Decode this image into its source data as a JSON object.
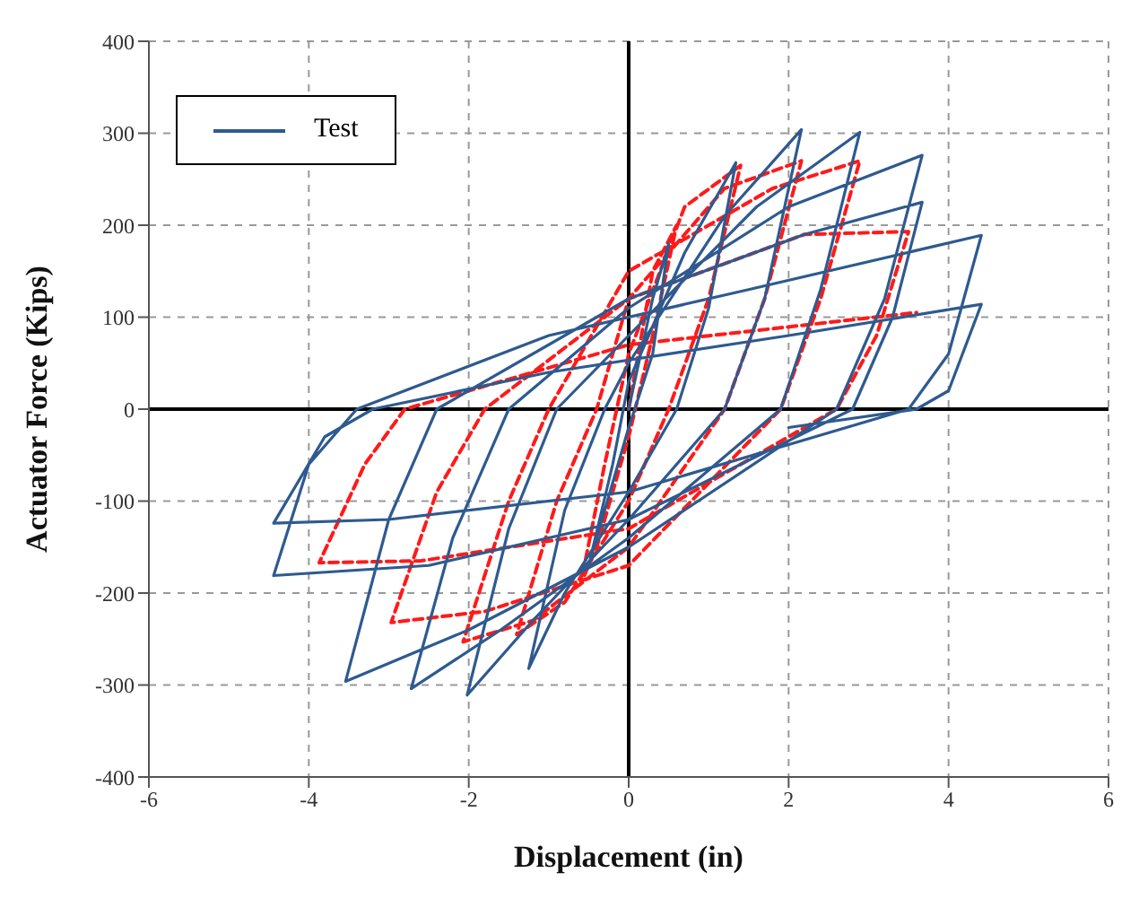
{
  "chart_data": {
    "type": "line",
    "xlabel": "Displacement (in)",
    "ylabel": "Actuator Force (Kips)",
    "xlim": [
      -6,
      6
    ],
    "xticks": [
      -6,
      -4,
      -2,
      0,
      2,
      4,
      6
    ],
    "ylim": [
      -400,
      400
    ],
    "yticks": [
      -400,
      -300,
      -200,
      -100,
      0,
      100,
      200,
      300,
      400
    ],
    "grid": true,
    "legend": "top left",
    "marker": "none",
    "series": [
      {
        "color": "#ff1a1a",
        "line_style": "dashed",
        "x": [
          0,
          0.3,
          0.6,
          0.3,
          0,
          -0.4,
          -0.6,
          -0.3,
          0,
          0.7,
          1.4,
          1.0,
          0.5,
          0,
          -0.8,
          -1.4,
          -0.9,
          -0.4,
          0,
          1.2,
          2.16,
          1.7,
          1.2,
          0,
          -1.2,
          -2.07,
          -1.5,
          -1.0,
          0,
          1.8,
          2.89,
          2.4,
          1.9,
          0,
          -1.8,
          -2.97,
          -2.4,
          -1.8,
          0,
          2.2,
          3.5,
          3.1,
          2.6,
          0,
          -2.6,
          -3.87,
          -3.3,
          -2.8,
          0,
          3.6
        ],
        "values": [
          0,
          150,
          200,
          80,
          -30,
          -150,
          -190,
          -60,
          60,
          220,
          265,
          120,
          0,
          -100,
          -210,
          -245,
          -100,
          0,
          120,
          240,
          270,
          120,
          0,
          -150,
          -230,
          -253,
          -100,
          0,
          150,
          240,
          270,
          120,
          0,
          -170,
          -220,
          -232,
          -90,
          0,
          120,
          190,
          193,
          80,
          0,
          -130,
          -165,
          -167,
          -60,
          0,
          70,
          105
        ]
      },
      {
        "name": "Test",
        "color": "#2e5a8f",
        "line_style": "solid",
        "x": [
          0,
          0.3,
          0.5,
          0.3,
          0,
          -0.3,
          -0.5,
          -0.2,
          0,
          0.7,
          1.34,
          1.0,
          0.6,
          0,
          -0.8,
          -1.25,
          -0.8,
          -0.3,
          0,
          1.2,
          2.16,
          1.7,
          1.2,
          0,
          -1.2,
          -2.02,
          -1.5,
          -0.9,
          0,
          1.6,
          2.89,
          2.4,
          1.9,
          0,
          -1.6,
          -2.72,
          -2.2,
          -1.5,
          0,
          2.0,
          3.67,
          3.2,
          2.6,
          0,
          -2.0,
          -3.54,
          -3.0,
          -2.4,
          0,
          2.2,
          3.67,
          3.3,
          2.8,
          0,
          -2.5,
          -4.44,
          -4.0,
          -3.4,
          -1,
          1.5,
          4.41,
          4.0,
          3.5,
          0,
          -3,
          -4.44,
          -3.8,
          -3.2,
          -1,
          2,
          4.41,
          4.0,
          3.6,
          2
        ],
        "values": [
          0,
          120,
          180,
          60,
          -20,
          -110,
          -170,
          -60,
          30,
          170,
          268,
          110,
          0,
          -90,
          -200,
          -282,
          -110,
          0,
          50,
          210,
          304,
          120,
          0,
          -120,
          -230,
          -311,
          -130,
          0,
          80,
          220,
          301,
          130,
          0,
          -140,
          -240,
          -304,
          -140,
          0,
          110,
          220,
          276,
          120,
          0,
          -150,
          -240,
          -296,
          -120,
          0,
          120,
          190,
          225,
          100,
          0,
          -120,
          -170,
          -181,
          -60,
          0,
          80,
          130,
          189,
          60,
          0,
          -90,
          -120,
          -124,
          -30,
          0,
          40,
          80,
          114,
          20,
          0,
          -20
        ]
      }
    ]
  }
}
